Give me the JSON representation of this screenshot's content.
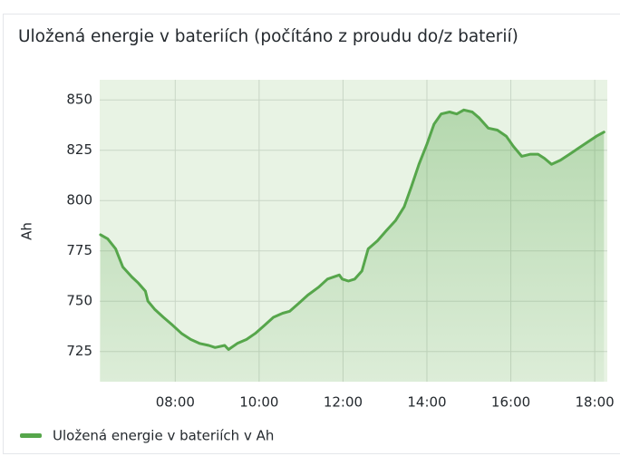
{
  "chart_data": {
    "type": "line",
    "title": "Uložená energie v bateriích (počítáno z proudu do/z baterií)",
    "y_label": "Ah",
    "x": [
      6.22,
      6.39,
      6.58,
      6.75,
      6.97,
      7.12,
      7.29,
      7.35,
      7.51,
      7.72,
      7.94,
      8.15,
      8.37,
      8.58,
      8.8,
      8.95,
      9.18,
      9.27,
      9.48,
      9.7,
      9.91,
      10.13,
      10.34,
      10.56,
      10.73,
      10.95,
      11.16,
      11.42,
      11.63,
      11.91,
      11.98,
      12.13,
      12.28,
      12.45,
      12.6,
      12.82,
      13.03,
      13.25,
      13.46,
      13.63,
      13.81,
      14.0,
      14.17,
      14.34,
      14.54,
      14.71,
      14.88,
      15.08,
      15.25,
      15.46,
      15.68,
      15.89,
      16.06,
      16.26,
      16.47,
      16.65,
      16.8,
      16.97,
      17.18,
      17.4,
      17.61,
      17.83,
      18.04,
      18.22
    ],
    "series": [
      {
        "name": "Uložená energie v bateriích v Ah",
        "color": "#56a64b",
        "values": [
          783,
          781,
          776,
          767,
          762,
          759,
          755,
          750,
          746,
          742,
          738,
          734,
          731,
          729,
          728,
          727,
          728,
          726,
          729,
          731,
          734,
          738,
          742,
          744,
          745,
          749,
          753,
          757,
          761,
          763,
          761,
          760,
          761,
          765,
          776,
          780,
          785,
          790,
          797,
          807,
          818,
          828,
          838,
          843,
          844,
          843,
          845,
          844,
          841,
          836,
          835,
          832,
          827,
          822,
          823,
          823,
          821,
          818,
          820,
          823,
          826,
          829,
          832,
          834
        ]
      }
    ],
    "xlim": [
      6.2,
      18.3
    ],
    "xticks": [
      {
        "value": 8,
        "label": "08:00"
      },
      {
        "value": 10,
        "label": "10:00"
      },
      {
        "value": 12,
        "label": "12:00"
      },
      {
        "value": 14,
        "label": "14:00"
      },
      {
        "value": 16,
        "label": "16:00"
      },
      {
        "value": 18,
        "label": "18:00"
      }
    ],
    "ylim": [
      710,
      860
    ],
    "yticks": [
      725,
      750,
      775,
      800,
      825,
      850
    ],
    "grid": true
  }
}
